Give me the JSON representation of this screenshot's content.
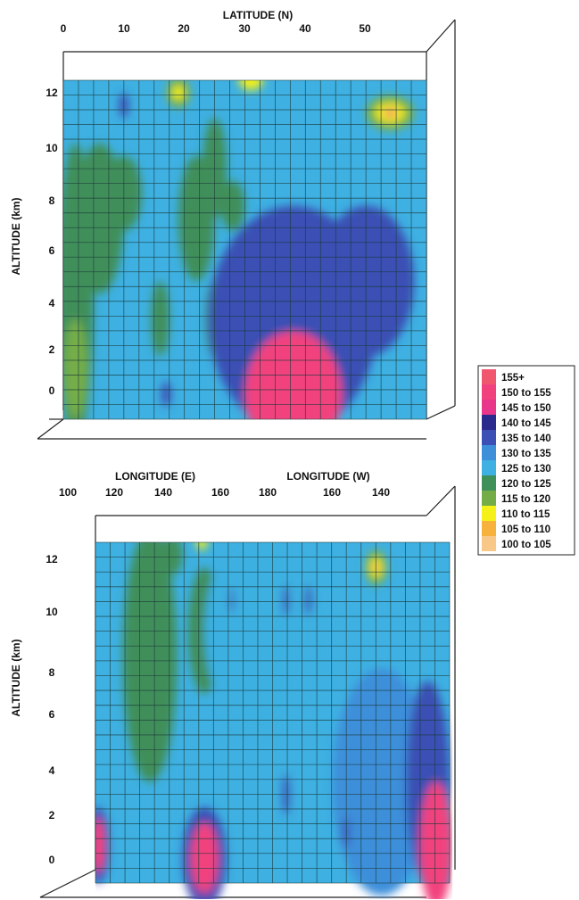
{
  "legend": {
    "entries": [
      {
        "label": "155+",
        "color": "#f0566e"
      },
      {
        "label": "150 to 155",
        "color": "#f2427e"
      },
      {
        "label": "145 to 150",
        "color": "#e8368a"
      },
      {
        "label": "140 to 145",
        "color": "#2a2a8c"
      },
      {
        "label": "135 to 140",
        "color": "#3b4fb4"
      },
      {
        "label": "130 to 135",
        "color": "#3d8fda"
      },
      {
        "label": "125 to 130",
        "color": "#3eb0e2"
      },
      {
        "label": "120 to 125",
        "color": "#3f8f5a"
      },
      {
        "label": "115 to 120",
        "color": "#74ad48"
      },
      {
        "label": "110 to 115",
        "color": "#f4f018"
      },
      {
        "label": "105 to 110",
        "color": "#f6b23c"
      },
      {
        "label": "100 to 105",
        "color": "#f7c888"
      }
    ]
  },
  "chart_data": [
    {
      "type": "heatmap",
      "xlabel": "LATITUDE (N)",
      "ylabel": "ALTITUDE (km)",
      "x_ticks": [
        "0",
        "10",
        "20",
        "30",
        "40",
        "50"
      ],
      "y_ticks": [
        "12",
        "10",
        "8",
        "6",
        "4",
        "2",
        "0"
      ],
      "xlim": [
        0,
        60
      ],
      "ylim": [
        -1,
        12.5
      ],
      "background_class": "125 to 130",
      "features": [
        {
          "x": 2,
          "y": 4,
          "rx": 3,
          "ry": 6,
          "class": "120 to 125"
        },
        {
          "x": 2,
          "y": 1,
          "rx": 2,
          "ry": 2,
          "class": "115 to 120"
        },
        {
          "x": 6,
          "y": 7,
          "rx": 4,
          "ry": 3,
          "class": "120 to 125"
        },
        {
          "x": 10,
          "y": 8,
          "rx": 3,
          "ry": 1.5,
          "class": "120 to 125"
        },
        {
          "x": 22,
          "y": 7,
          "rx": 3,
          "ry": 2.5,
          "class": "120 to 125"
        },
        {
          "x": 25,
          "y": 9,
          "rx": 2,
          "ry": 2,
          "class": "120 to 125"
        },
        {
          "x": 28,
          "y": 7.5,
          "rx": 2,
          "ry": 1,
          "class": "120 to 125"
        },
        {
          "x": 16,
          "y": 3,
          "rx": 1.5,
          "ry": 1.5,
          "class": "120 to 125"
        },
        {
          "x": 25,
          "y": 3,
          "rx": 1.5,
          "ry": 1.5,
          "class": "120 to 125"
        },
        {
          "x": 38,
          "y": 3,
          "rx": 14,
          "ry": 4.5,
          "class": "135 to 140"
        },
        {
          "x": 50,
          "y": 4.5,
          "rx": 8,
          "ry": 3,
          "class": "135 to 140"
        },
        {
          "x": 38,
          "y": 0,
          "rx": 8,
          "ry": 2.5,
          "class": "150 to 155"
        },
        {
          "x": 19,
          "y": 12,
          "rx": 2,
          "ry": 0.6,
          "class": "115 to 120"
        },
        {
          "x": 19,
          "y": 12,
          "rx": 1,
          "ry": 0.3,
          "class": "110 to 115"
        },
        {
          "x": 31,
          "y": 12.5,
          "rx": 2,
          "ry": 0.4,
          "class": "110 to 115"
        },
        {
          "x": 54,
          "y": 11.2,
          "rx": 4,
          "ry": 0.7,
          "class": "115 to 120"
        },
        {
          "x": 54,
          "y": 11.2,
          "rx": 2.5,
          "ry": 0.4,
          "class": "110 to 115"
        },
        {
          "x": 54,
          "y": 11.2,
          "rx": 1,
          "ry": 0.15,
          "class": "155+"
        },
        {
          "x": 10,
          "y": 11.5,
          "rx": 0.8,
          "ry": 0.5,
          "class": "135 to 140"
        },
        {
          "x": 17,
          "y": 0,
          "rx": 0.8,
          "ry": 0.5,
          "class": "135 to 140"
        },
        {
          "x": 45,
          "y": 6.2,
          "rx": 0.8,
          "ry": 0.5,
          "class": "135 to 140"
        }
      ]
    },
    {
      "type": "heatmap",
      "xlabel": "LONGITUDE (E)   LONGITUDE (W)",
      "ylabel": "ALTITUDE (km)",
      "x_ticks": [
        "100",
        "120",
        "140",
        "160",
        "180",
        "160",
        "140"
      ],
      "y_ticks": [
        "12",
        "10",
        "8",
        "6",
        "4",
        "2",
        "0"
      ],
      "xlim": [
        100,
        230
      ],
      "ylim": [
        -1,
        12.5
      ],
      "background_class": "125 to 130",
      "features": [
        {
          "x": 120,
          "y": 8,
          "rx": 10,
          "ry": 5,
          "class": "120 to 125"
        },
        {
          "x": 140,
          "y": 9,
          "rx": 6,
          "ry": 2.5,
          "class": "120 to 125"
        },
        {
          "x": 128,
          "y": 12,
          "rx": 4,
          "ry": 0.8,
          "class": "120 to 125"
        },
        {
          "x": 139,
          "y": 12.5,
          "rx": 2,
          "ry": 0.3,
          "class": "110 to 115"
        },
        {
          "x": 160,
          "y": 9,
          "rx": 20,
          "ry": 4,
          "class": "125 to 130"
        },
        {
          "x": 205,
          "y": 3,
          "rx": 18,
          "ry": 4.5,
          "class": "130 to 135"
        },
        {
          "x": 222,
          "y": 3,
          "rx": 8,
          "ry": 4,
          "class": "135 to 140"
        },
        {
          "x": 225,
          "y": 0.5,
          "rx": 6,
          "ry": 2.5,
          "class": "150 to 155"
        },
        {
          "x": 140,
          "y": 0,
          "rx": 8,
          "ry": 2,
          "class": "135 to 140"
        },
        {
          "x": 140,
          "y": 0,
          "rx": 5,
          "ry": 1.4,
          "class": "150 to 155"
        },
        {
          "x": 101,
          "y": 0.5,
          "rx": 4,
          "ry": 1.5,
          "class": "135 to 140"
        },
        {
          "x": 101,
          "y": 0.5,
          "rx": 2.5,
          "ry": 1.1,
          "class": "150 to 155"
        },
        {
          "x": 203,
          "y": 11.5,
          "rx": 4,
          "ry": 0.7,
          "class": "115 to 120"
        },
        {
          "x": 203,
          "y": 11.5,
          "rx": 2.5,
          "ry": 0.4,
          "class": "110 to 115"
        },
        {
          "x": 203,
          "y": 11.5,
          "rx": 1,
          "ry": 0.15,
          "class": "155+"
        },
        {
          "x": 150,
          "y": 10.2,
          "rx": 0.8,
          "ry": 0.5,
          "class": "135 to 140"
        },
        {
          "x": 170,
          "y": 10.2,
          "rx": 1.2,
          "ry": 0.6,
          "class": "135 to 140"
        },
        {
          "x": 178,
          "y": 10.2,
          "rx": 1.2,
          "ry": 0.6,
          "class": "135 to 140"
        },
        {
          "x": 170,
          "y": 2.5,
          "rx": 1.2,
          "ry": 0.8,
          "class": "135 to 140"
        },
        {
          "x": 192,
          "y": 1,
          "rx": 1.2,
          "ry": 0.6,
          "class": "135 to 140"
        },
        {
          "x": 219,
          "y": 6.2,
          "rx": 0.8,
          "ry": 0.5,
          "class": "135 to 140"
        }
      ]
    }
  ]
}
